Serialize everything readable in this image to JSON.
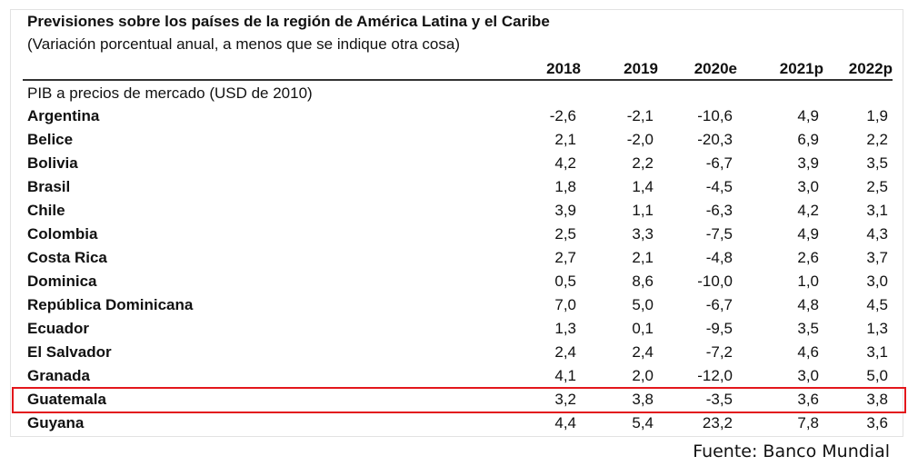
{
  "table": {
    "title": "Previsiones sobre los países de la región de América Latina y el Caribe",
    "subtitle": "(Variación porcentual anual, a menos que se indique otra cosa)",
    "columns": [
      "2018",
      "2019",
      "2020e",
      "2021p",
      "2022p"
    ],
    "section_label": "PIB a precios de mercado (USD de 2010)",
    "rows": [
      {
        "country": "Argentina",
        "values": [
          "-2,6",
          "-2,1",
          "-10,6",
          "4,9",
          "1,9"
        ]
      },
      {
        "country": "Belice",
        "values": [
          "2,1",
          "-2,0",
          "-20,3",
          "6,9",
          "2,2"
        ]
      },
      {
        "country": "Bolivia",
        "values": [
          "4,2",
          "2,2",
          "-6,7",
          "3,9",
          "3,5"
        ]
      },
      {
        "country": "Brasil",
        "values": [
          "1,8",
          "1,4",
          "-4,5",
          "3,0",
          "2,5"
        ]
      },
      {
        "country": "Chile",
        "values": [
          "3,9",
          "1,1",
          "-6,3",
          "4,2",
          "3,1"
        ]
      },
      {
        "country": "Colombia",
        "values": [
          "2,5",
          "3,3",
          "-7,5",
          "4,9",
          "4,3"
        ]
      },
      {
        "country": "Costa Rica",
        "values": [
          "2,7",
          "2,1",
          "-4,8",
          "2,6",
          "3,7"
        ]
      },
      {
        "country": "Dominica",
        "values": [
          "0,5",
          "8,6",
          "-10,0",
          "1,0",
          "3,0"
        ]
      },
      {
        "country": "República Dominicana",
        "values": [
          "7,0",
          "5,0",
          "-6,7",
          "4,8",
          "4,5"
        ]
      },
      {
        "country": "Ecuador",
        "values": [
          "1,3",
          "0,1",
          "-9,5",
          "3,5",
          "1,3"
        ]
      },
      {
        "country": "El Salvador",
        "values": [
          "2,4",
          "2,4",
          "-7,2",
          "4,6",
          "3,1"
        ]
      },
      {
        "country": "Granada",
        "values": [
          "4,1",
          "2,0",
          "-12,0",
          "3,0",
          "5,0"
        ]
      },
      {
        "country": "Guatemala",
        "values": [
          "3,2",
          "3,8",
          "-3,5",
          "3,6",
          "3,8"
        ],
        "highlighted": true
      },
      {
        "country": "Guyana",
        "values": [
          "4,4",
          "5,4",
          "23,2",
          "7,8",
          "3,6"
        ]
      }
    ],
    "highlight_color": "#e3171c"
  },
  "source": "Fuente: Banco Mundial"
}
